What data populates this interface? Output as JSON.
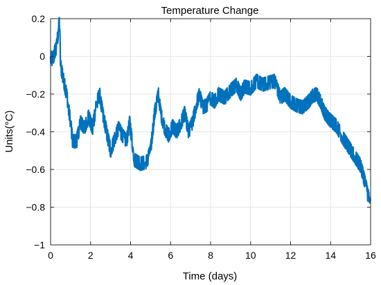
{
  "chart_data": {
    "type": "line",
    "title": "Temperature Change",
    "xlabel": "Time (days)",
    "ylabel": "Units(°C)",
    "xlim": [
      0,
      16
    ],
    "ylim": [
      -1,
      0.2
    ],
    "grid": true,
    "x_ticks": [
      0,
      2,
      4,
      6,
      8,
      10,
      12,
      14,
      16
    ],
    "x_tick_labels": [
      "0",
      "2",
      "4",
      "6",
      "8",
      "10",
      "12",
      "14",
      "16"
    ],
    "y_ticks": [
      -1,
      -0.8,
      -0.6,
      -0.4,
      -0.2,
      0,
      0.2
    ],
    "y_tick_labels": [
      "−1",
      "−0.8",
      "−0.6",
      "−0.4",
      "−0.2",
      "0",
      "0.2"
    ],
    "series": [
      {
        "color": "#0072BD",
        "noise_band": 0.035,
        "x": [
          0,
          0.1,
          0.2,
          0.3,
          0.4,
          0.45,
          0.5,
          0.6,
          0.8,
          1.0,
          1.1,
          1.3,
          1.5,
          1.7,
          1.9,
          2.1,
          2.3,
          2.45,
          2.6,
          2.8,
          3.0,
          3.2,
          3.4,
          3.6,
          3.8,
          3.95,
          4.2,
          4.5,
          4.8,
          5.0,
          5.2,
          5.4,
          5.5,
          5.7,
          5.9,
          6.1,
          6.3,
          6.5,
          6.7,
          6.9,
          7.1,
          7.3,
          7.45,
          7.6,
          7.8,
          8.0,
          8.2,
          8.4,
          8.7,
          9.0,
          9.3,
          9.5,
          9.7,
          10.0,
          10.3,
          10.6,
          10.9,
          11.2,
          11.5,
          11.7,
          12.0,
          12.3,
          12.6,
          12.9,
          13.1,
          13.3,
          13.5,
          13.7,
          13.9,
          14.1,
          14.3,
          14.6,
          14.9,
          15.2,
          15.5,
          15.7,
          15.9,
          16.0
        ],
        "y": [
          0.0,
          -0.02,
          0.02,
          0.05,
          0.15,
          0.18,
          -0.05,
          -0.1,
          -0.2,
          -0.35,
          -0.45,
          -0.45,
          -0.35,
          -0.38,
          -0.32,
          -0.38,
          -0.25,
          -0.2,
          -0.3,
          -0.4,
          -0.5,
          -0.44,
          -0.38,
          -0.42,
          -0.45,
          -0.35,
          -0.55,
          -0.57,
          -0.56,
          -0.5,
          -0.3,
          -0.2,
          -0.3,
          -0.38,
          -0.42,
          -0.37,
          -0.4,
          -0.36,
          -0.3,
          -0.4,
          -0.35,
          -0.25,
          -0.2,
          -0.27,
          -0.26,
          -0.22,
          -0.24,
          -0.2,
          -0.22,
          -0.18,
          -0.15,
          -0.2,
          -0.16,
          -0.17,
          -0.13,
          -0.15,
          -0.14,
          -0.13,
          -0.22,
          -0.2,
          -0.24,
          -0.26,
          -0.27,
          -0.24,
          -0.21,
          -0.2,
          -0.24,
          -0.3,
          -0.33,
          -0.35,
          -0.37,
          -0.43,
          -0.48,
          -0.53,
          -0.58,
          -0.66,
          -0.75,
          -0.8
        ]
      }
    ]
  }
}
